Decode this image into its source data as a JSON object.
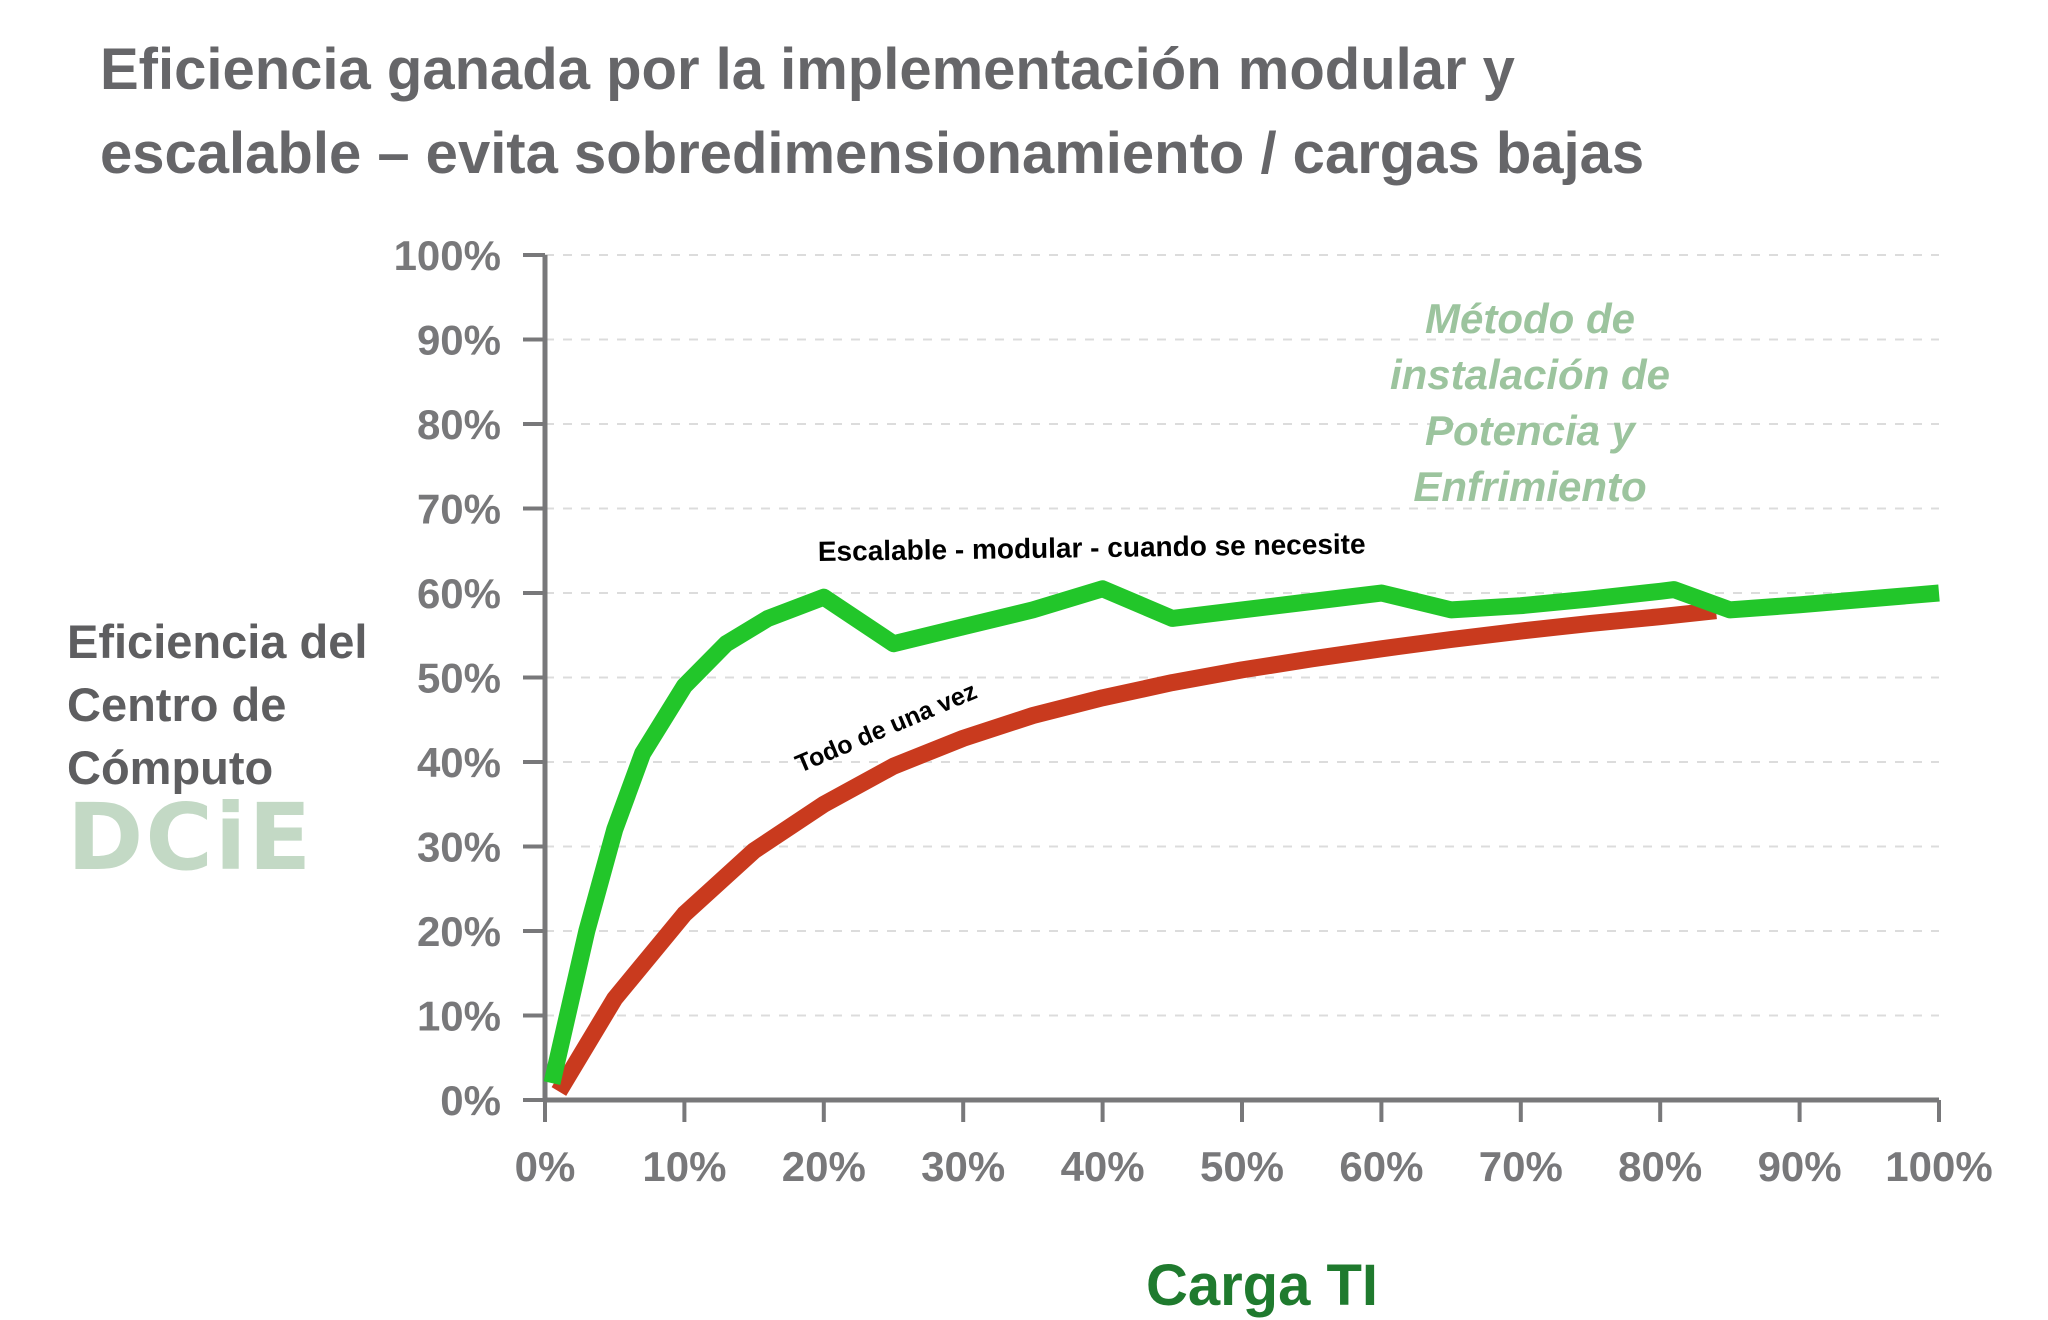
{
  "title": {
    "line1": "Eficiencia ganada por la implementación modular y",
    "line2": "escalable – evita sobredimensionamiento / cargas bajas"
  },
  "ylabel": {
    "line1": "Eficiencia del",
    "line2": "Centro de",
    "line3": "Cómputo",
    "logo": "DCiE"
  },
  "colors": {
    "title": "#666669",
    "axis": "#78787a",
    "scalable_series": "#22c62a",
    "once_series": "#c93a1e",
    "annotation": "#9cc49e",
    "xlabel": "#1f7a2e",
    "logo": "#c3d9c5"
  },
  "chart_data": {
    "type": "line",
    "xlabel": "Carga TI",
    "ylabel": "Eficiencia del Centro de Cómputo DCiE",
    "xlim": [
      0,
      100
    ],
    "ylim": [
      0,
      100
    ],
    "x_ticks": [
      "0%",
      "10%",
      "20%",
      "30%",
      "40%",
      "50%",
      "60%",
      "70%",
      "80%",
      "90%",
      "100%"
    ],
    "y_ticks": [
      "0%",
      "10%",
      "20%",
      "30%",
      "40%",
      "50%",
      "60%",
      "70%",
      "80%",
      "90%",
      "100%"
    ],
    "grid": "horizontal dashed",
    "annotation": {
      "line1": "Método de",
      "line2": "instalación de",
      "line3": "Potencia y",
      "line4": "Enfrimiento"
    },
    "series": [
      {
        "name": "Escalable -  modular - cuando se necesite",
        "color": "#22c62a",
        "x": [
          0.5,
          3,
          5,
          7,
          10,
          13,
          16,
          20,
          25,
          30,
          35,
          40,
          45,
          50,
          55,
          60,
          65,
          70,
          75,
          80,
          81,
          85,
          90,
          95,
          100
        ],
        "y": [
          2,
          20,
          32,
          41,
          49,
          54,
          57,
          59.5,
          54,
          56,
          58,
          60.5,
          57,
          58,
          59,
          60,
          58,
          58.5,
          59.3,
          60.2,
          60.4,
          58,
          58.6,
          59.3,
          60
        ]
      },
      {
        "name": "Todo de una vez",
        "color": "#c93a1e",
        "x": [
          1,
          5,
          10,
          15,
          20,
          25,
          30,
          35,
          40,
          45,
          50,
          55,
          60,
          65,
          70,
          75,
          80,
          84
        ],
        "y": [
          1,
          12,
          22,
          29.5,
          35,
          39.5,
          42.8,
          45.5,
          47.6,
          49.4,
          50.9,
          52.2,
          53.4,
          54.5,
          55.5,
          56.4,
          57.2,
          57.9
        ]
      }
    ]
  }
}
